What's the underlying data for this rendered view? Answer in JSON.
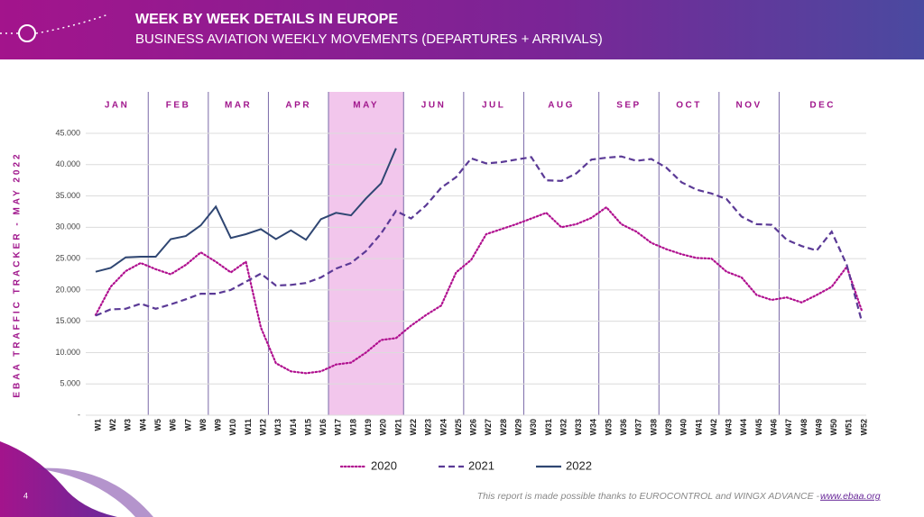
{
  "header": {
    "title": "WEEK BY WEEK DETAILS IN EUROPE",
    "subtitle": "BUSINESS AVIATION WEEKLY MOVEMENTS (DEPARTURES + ARRIVALS)"
  },
  "side_label": "EBAA TRAFFIC TRACKER - MAY 2022",
  "footer": {
    "page": "4",
    "note": "This report is made possible thanks to EUROCONTROL and WINGX ADVANCE - ",
    "link": "www.ebaa.org"
  },
  "chart_data": {
    "type": "line",
    "months": [
      "JAN",
      "FEB",
      "MAR",
      "APR",
      "MAY",
      "JUN",
      "JUL",
      "AUG",
      "SEP",
      "OCT",
      "NOV",
      "DEC"
    ],
    "categories": [
      "W1",
      "W2",
      "W3",
      "W4",
      "W5",
      "W6",
      "W7",
      "W8",
      "W9",
      "W10",
      "W11",
      "W12",
      "W13",
      "W14",
      "W15",
      "W16",
      "W17",
      "W18",
      "W19",
      "W20",
      "W21",
      "W22",
      "W23",
      "W24",
      "W25",
      "W26",
      "W27",
      "W28",
      "W29",
      "W30",
      "W31",
      "W32",
      "W33",
      "W34",
      "W35",
      "W36",
      "W37",
      "W38",
      "W39",
      "W40",
      "W41",
      "W42",
      "W43",
      "W44",
      "W45",
      "W46",
      "W47",
      "W48",
      "W49",
      "W50",
      "W51",
      "W52"
    ],
    "series": [
      {
        "name": "2020",
        "color": "#b0108f",
        "dash": "dotted",
        "values": [
          16000,
          20500,
          23000,
          24300,
          23300,
          22500,
          24000,
          26000,
          24500,
          22800,
          24500,
          14000,
          8300,
          7000,
          6700,
          7000,
          8100,
          8400,
          10000,
          12000,
          12300,
          14300,
          16000,
          17500,
          22800,
          24800,
          28900,
          29700,
          30500,
          31400,
          32300,
          30000,
          30500,
          31500,
          33200,
          30500,
          29300,
          27500,
          26500,
          25700,
          25100,
          25000,
          22900,
          22000,
          19200,
          18400,
          18800,
          18000,
          19200,
          20500,
          23700,
          16700
        ]
      },
      {
        "name": "2021",
        "color": "#5b3a96",
        "dash": "dashed",
        "values": [
          15900,
          16900,
          17000,
          17800,
          17000,
          17700,
          18500,
          19400,
          19400,
          20000,
          21300,
          22600,
          20700,
          20800,
          21100,
          22000,
          23400,
          24300,
          26200,
          29000,
          32600,
          31400,
          33500,
          36300,
          38000,
          41000,
          40200,
          40400,
          40800,
          41200,
          37500,
          37400,
          38600,
          40800,
          41100,
          41300,
          40600,
          40900,
          39500,
          37200,
          36000,
          35400,
          34500,
          31700,
          30500,
          30400,
          28000,
          27000,
          26300,
          29300,
          24000,
          15000
        ]
      },
      {
        "name": "2022",
        "color": "#2f4672",
        "dash": "solid",
        "values": [
          22900,
          23500,
          25200,
          25300,
          25300,
          28100,
          28600,
          30300,
          33300,
          28300,
          28900,
          29700,
          28100,
          29500,
          28000,
          31300,
          32300,
          31900,
          34600,
          37000,
          42600,
          null,
          null,
          null,
          null,
          null,
          null,
          null,
          null,
          null,
          null,
          null,
          null,
          null,
          null,
          null,
          null,
          null,
          null,
          null,
          null,
          null,
          null,
          null,
          null,
          null,
          null,
          null,
          null,
          null,
          null,
          null
        ]
      }
    ],
    "ylim": [
      0,
      45000
    ],
    "yticks": [
      {
        "value": 0,
        "label": "-"
      },
      {
        "value": 5000,
        "label": "5.000"
      },
      {
        "value": 10000,
        "label": "10.000"
      },
      {
        "value": 15000,
        "label": "15.000"
      },
      {
        "value": 20000,
        "label": "20.000"
      },
      {
        "value": 25000,
        "label": "25.000"
      },
      {
        "value": 30000,
        "label": "30.000"
      },
      {
        "value": 35000,
        "label": "35.000"
      },
      {
        "value": 40000,
        "label": "40.000"
      },
      {
        "value": 45000,
        "label": "45.000"
      }
    ],
    "grid": true,
    "highlight_month": "MAY",
    "legend": "bottom"
  }
}
